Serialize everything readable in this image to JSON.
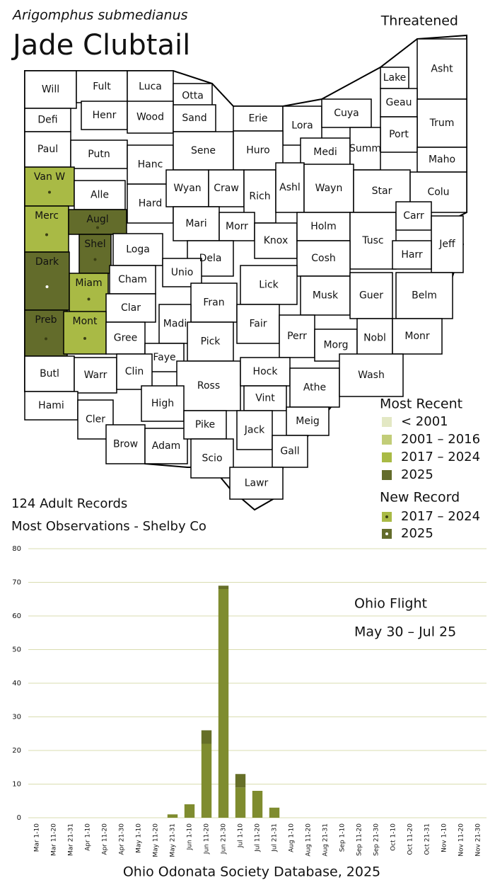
{
  "header": {
    "scientific_name": "Arigomphus submedianus",
    "common_name": "Jade Clubtail",
    "status": "Threatened"
  },
  "map": {
    "counties": [
      {
        "label": "Will"
      },
      {
        "label": "Fult"
      },
      {
        "label": "Luca"
      },
      {
        "label": "Otta"
      },
      {
        "label": "Lake"
      },
      {
        "label": "Asht"
      },
      {
        "label": "Geau"
      },
      {
        "label": "Defi"
      },
      {
        "label": "Henr"
      },
      {
        "label": "Wood"
      },
      {
        "label": "Sand"
      },
      {
        "label": "Erie"
      },
      {
        "label": "Lora"
      },
      {
        "label": "Cuya"
      },
      {
        "label": "Trum"
      },
      {
        "label": "Port"
      },
      {
        "label": "Paul"
      },
      {
        "label": "Putn"
      },
      {
        "label": "Hanc"
      },
      {
        "label": "Sene"
      },
      {
        "label": "Huro"
      },
      {
        "label": "Medi"
      },
      {
        "label": "Summ"
      },
      {
        "label": "Maho"
      },
      {
        "label": "Van W",
        "most_recent": "2017 – 2024",
        "new_record": "2017 – 2024"
      },
      {
        "label": "Alle"
      },
      {
        "label": "Hard"
      },
      {
        "label": "Wyan"
      },
      {
        "label": "Craw"
      },
      {
        "label": "Rich"
      },
      {
        "label": "Ashl"
      },
      {
        "label": "Wayn"
      },
      {
        "label": "Star"
      },
      {
        "label": "Colu"
      },
      {
        "label": "Merc",
        "most_recent": "2017 – 2024",
        "new_record": "2017 – 2024"
      },
      {
        "label": "Augl",
        "most_recent": "2025",
        "new_record": "2017 – 2024"
      },
      {
        "label": "Shel",
        "most_recent": "2025",
        "new_record": "2017 – 2024"
      },
      {
        "label": "Mari"
      },
      {
        "label": "Morr"
      },
      {
        "label": "Knox"
      },
      {
        "label": "Holm"
      },
      {
        "label": "Tusc"
      },
      {
        "label": "Carr"
      },
      {
        "label": "Jeff"
      },
      {
        "label": "Harr"
      },
      {
        "label": "Dark",
        "most_recent": "2025",
        "new_record": "2025"
      },
      {
        "label": "Loga"
      },
      {
        "label": "Dela"
      },
      {
        "label": "Cosh"
      },
      {
        "label": "Miam",
        "most_recent": "2017 – 2024",
        "new_record": "2017 – 2024"
      },
      {
        "label": "Cham"
      },
      {
        "label": "Unio"
      },
      {
        "label": "Lick"
      },
      {
        "label": "Musk"
      },
      {
        "label": "Guer"
      },
      {
        "label": "Belm"
      },
      {
        "label": "Clar"
      },
      {
        "label": "Fran"
      },
      {
        "label": "Madi"
      },
      {
        "label": "Fair"
      },
      {
        "label": "Perr"
      },
      {
        "label": "Morg"
      },
      {
        "label": "Nobl"
      },
      {
        "label": "Monr"
      },
      {
        "label": "Preb",
        "most_recent": "2025",
        "new_record": "2017 – 2024"
      },
      {
        "label": "Mont",
        "most_recent": "2017 – 2024",
        "new_record": "2017 – 2024"
      },
      {
        "label": "Gree"
      },
      {
        "label": "Pick"
      },
      {
        "label": "Faye"
      },
      {
        "label": "Butl"
      },
      {
        "label": "Warr"
      },
      {
        "label": "Clin"
      },
      {
        "label": "Ross"
      },
      {
        "label": "Hock"
      },
      {
        "label": "Athe"
      },
      {
        "label": "Wash"
      },
      {
        "label": "Hami"
      },
      {
        "label": "Cler"
      },
      {
        "label": "High"
      },
      {
        "label": "Vint"
      },
      {
        "label": "Brow"
      },
      {
        "label": "Adam"
      },
      {
        "label": "Pike"
      },
      {
        "label": "Jack"
      },
      {
        "label": "Meig"
      },
      {
        "label": "Scio"
      },
      {
        "label": "Gall"
      },
      {
        "label": "Lawr"
      }
    ]
  },
  "legend": {
    "most_recent_title": "Most Recent",
    "most_recent": [
      {
        "label": "< 2001",
        "color": "#e3e8c4"
      },
      {
        "label": "2001 – 2016",
        "color": "#c2cd78"
      },
      {
        "label": "2017 – 2024",
        "color": "#a9ba45"
      },
      {
        "label": "2025",
        "color": "#636c2b"
      }
    ],
    "new_record_title": "New Record",
    "new_record": [
      {
        "label": "2017 – 2024",
        "color": "#a9ba45",
        "dot": "#3a3f14"
      },
      {
        "label": "2025",
        "color": "#636c2b",
        "dot": "#ffffff"
      }
    ]
  },
  "summary": [
    "124 Adult Records",
    "Most Observations - Shelby Co"
  ],
  "chart_data": {
    "type": "bar",
    "stacked": true,
    "categories": [
      "Mar 1-10",
      "Mar 11-20",
      "Mar 21-31",
      "Apr 1-10",
      "Apr 11-20",
      "Apr 21-30",
      "May 1-10",
      "May 11-20",
      "May 21-31",
      "Jun 1-10",
      "Jun 11-20",
      "Jun 21-30",
      "Jul 1-10",
      "Jul 11-20",
      "Jul 21-31",
      "Aug 1-10",
      "Aug 11-20",
      "Aug 21-31",
      "Sep 1-10",
      "Sep 11-20",
      "Sep 21-30",
      "Oct 1-10",
      "Oct 11-20",
      "Oct 21-31",
      "Nov 1-10",
      "Nov 11-20",
      "Nov 21-30"
    ],
    "series": [
      {
        "color": "#7f8c2f",
        "values": [
          0,
          0,
          0,
          0,
          0,
          0,
          0,
          0,
          1,
          4,
          22,
          68,
          9,
          8,
          3,
          0,
          0,
          0,
          0,
          0,
          0,
          0,
          0,
          0,
          0,
          0,
          0
        ]
      },
      {
        "color": "#666f28",
        "values": [
          0,
          0,
          0,
          0,
          0,
          0,
          0,
          0,
          0,
          0,
          4,
          1,
          4,
          0,
          0,
          0,
          0,
          0,
          0,
          0,
          0,
          0,
          0,
          0,
          0,
          0,
          0
        ]
      }
    ],
    "ylim": [
      0,
      80
    ],
    "yticks": [
      0,
      10,
      20,
      30,
      40,
      50,
      60,
      70,
      80
    ],
    "grid": true,
    "grid_color": "#d9ddb0",
    "annotations": [
      "Ohio Flight",
      "May 30 – Jul 25"
    ]
  },
  "footer": "Ohio Odonata Society Database, 2025"
}
